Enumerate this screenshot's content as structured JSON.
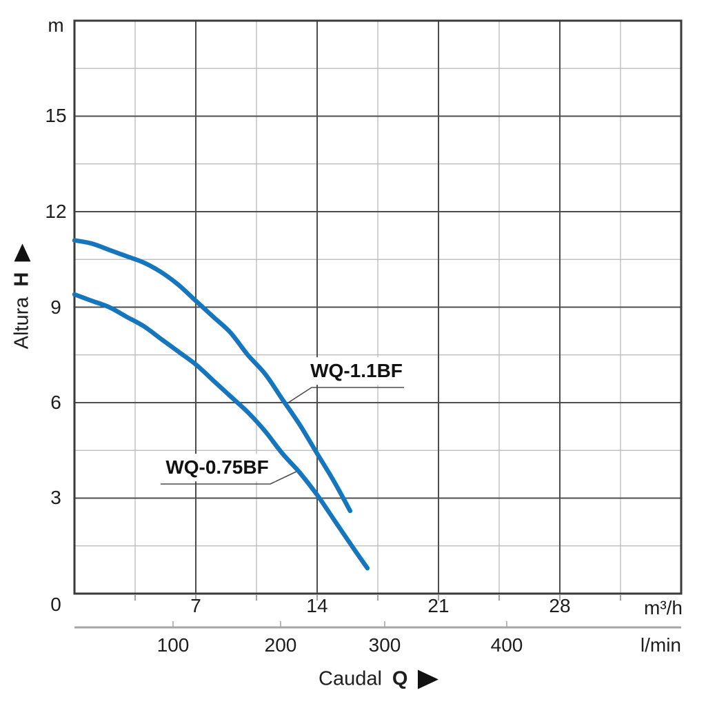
{
  "chart_data": {
    "type": "line",
    "description": "Pump performance curves: head (Altura H, m) vs flow (Caudal Q)",
    "x_title": {
      "name": "Caudal",
      "symbol": "Q",
      "arrow": "right"
    },
    "y_axis": {
      "name": "Altura",
      "symbol": "H",
      "arrow": "up",
      "unit": "m",
      "origin": "0",
      "range": [
        0,
        18
      ],
      "major_ticks": [
        15,
        12,
        9,
        6,
        3
      ],
      "major_step": 3,
      "minor_step": 1.5
    },
    "x_axis_primary": {
      "unit": "m³/h",
      "range": [
        0,
        35
      ],
      "major_ticks": [
        7,
        14,
        21,
        28
      ],
      "major_step": 7,
      "minor_step": 3.5
    },
    "x_axis_secondary": {
      "unit": "l/min",
      "ticks": [
        100,
        200,
        300,
        400
      ]
    },
    "grid": true,
    "legend_position": "inline-labels",
    "series": [
      {
        "name": "WQ-1.1BF",
        "color": "#1576bd",
        "points": [
          [
            0,
            11.1
          ],
          [
            1,
            11.0
          ],
          [
            2,
            10.8
          ],
          [
            3,
            10.6
          ],
          [
            4,
            10.4
          ],
          [
            5,
            10.1
          ],
          [
            6,
            9.7
          ],
          [
            7,
            9.2
          ],
          [
            8,
            8.7
          ],
          [
            9,
            8.2
          ],
          [
            10,
            7.5
          ],
          [
            11,
            6.9
          ],
          [
            12,
            6.1
          ],
          [
            13,
            5.3
          ],
          [
            14,
            4.4
          ],
          [
            15,
            3.5
          ],
          [
            15.9,
            2.6
          ]
        ]
      },
      {
        "name": "WQ-0.75BF",
        "color": "#1576bd",
        "points": [
          [
            0,
            9.4
          ],
          [
            1,
            9.2
          ],
          [
            2,
            9.0
          ],
          [
            3,
            8.7
          ],
          [
            4,
            8.4
          ],
          [
            5,
            8.0
          ],
          [
            6,
            7.6
          ],
          [
            7,
            7.2
          ],
          [
            8,
            6.7
          ],
          [
            9,
            6.2
          ],
          [
            10,
            5.7
          ],
          [
            11,
            5.1
          ],
          [
            12,
            4.4
          ],
          [
            13,
            3.8
          ],
          [
            14,
            3.1
          ],
          [
            15,
            2.3
          ],
          [
            16,
            1.5
          ],
          [
            16.9,
            0.8
          ]
        ]
      }
    ]
  },
  "colors": {
    "curve_blue": "#1576bd",
    "grid_major": "#4d4d4d",
    "grid_minor": "#b6b6b6",
    "plot_border": "#3a3a3a",
    "secondary_axis": "#a6a6a6",
    "tick_mark": "#7a7a7a",
    "text": "#1d1d1d",
    "leader_line": "#4a4a4a"
  }
}
